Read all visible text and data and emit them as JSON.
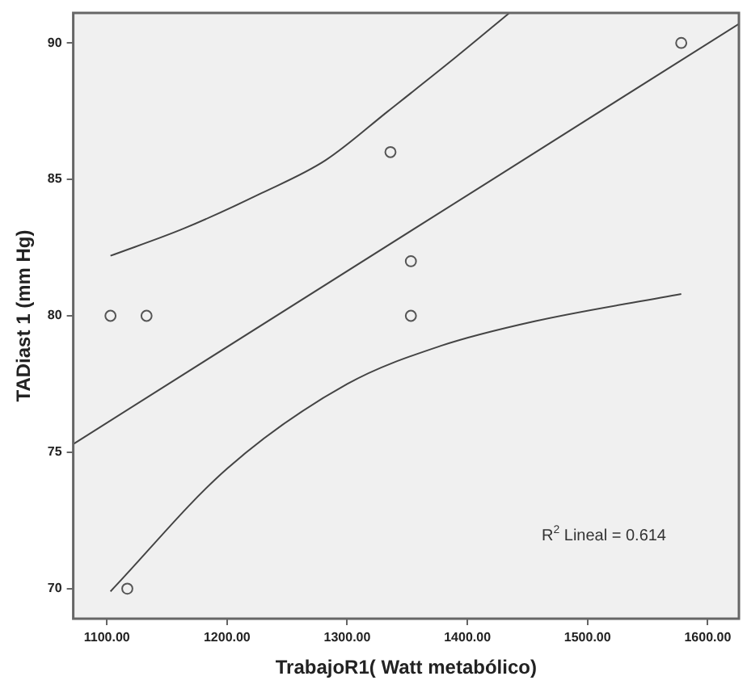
{
  "chart_data": {
    "type": "scatter",
    "xlabel": "TrabajoR1( Watt metabólico)",
    "ylabel": "TADiast 1 (mm Hg)",
    "series": [
      {
        "color": "#555555",
        "marker": "circle",
        "x": [
          1103,
          1133,
          1336,
          1353,
          1353,
          1578,
          1117
        ],
        "values": [
          80,
          80,
          86,
          82,
          80,
          90,
          70
        ]
      },
      {
        "type": "line",
        "color": "#444444",
        "marker": "none",
        "x": [
          1072,
          1626
        ],
        "values": [
          75.3,
          90.7
        ]
      },
      {
        "type": "line",
        "color": "#444444",
        "marker": "none",
        "x": [
          1103,
          1164,
          1229,
          1282,
          1334,
          1391,
          1435
        ],
        "values": [
          82.2,
          83.2,
          84.5,
          85.7,
          87.5,
          89.5,
          91.1
        ]
      },
      {
        "type": "line",
        "color": "#444444",
        "marker": "none",
        "x": [
          1103,
          1200,
          1300,
          1378,
          1456,
          1578
        ],
        "values": [
          69.9,
          74.4,
          77.5,
          78.9,
          79.8,
          80.8
        ]
      }
    ],
    "xlim": [
      1072,
      1626
    ],
    "ylim": [
      68.9,
      91.1
    ],
    "xticks": [
      {
        "value": 1100,
        "label": "1100.00"
      },
      {
        "value": 1200,
        "label": "1200.00"
      },
      {
        "value": 1300,
        "label": "1300.00"
      },
      {
        "value": 1400,
        "label": "1400.00"
      },
      {
        "value": 1500,
        "label": "1500.00"
      },
      {
        "value": 1600,
        "label": "1600.00"
      }
    ],
    "yticks": [
      70,
      75,
      80,
      85,
      90
    ],
    "annotations": [
      "R$^{2}$ Lineal = 0.614"
    ],
    "grid": false,
    "legend": false
  }
}
